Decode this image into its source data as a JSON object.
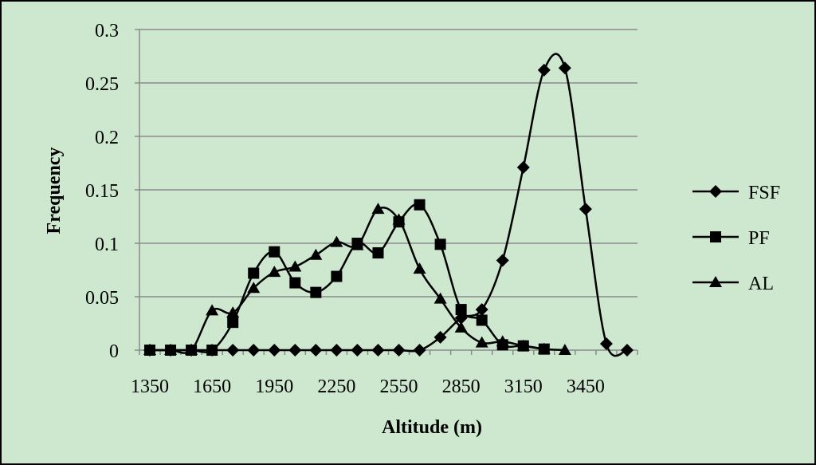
{
  "chart_data": {
    "type": "line",
    "xlabel": "Altitude (m)",
    "ylabel": "Frequency",
    "ylim": [
      0,
      0.3
    ],
    "y_ticks": [
      "0",
      "0.05",
      "0.1",
      "0.15",
      "0.2",
      "0.25",
      "0.3"
    ],
    "x_tick_labels": [
      "1350",
      "1650",
      "1950",
      "2250",
      "2550",
      "2850",
      "3150",
      "3450"
    ],
    "x": [
      1350,
      1450,
      1550,
      1650,
      1750,
      1850,
      1950,
      2050,
      2150,
      2250,
      2350,
      2450,
      2550,
      2650,
      2750,
      2850,
      2950,
      3050,
      3150,
      3250,
      3350,
      3450,
      3550,
      3650
    ],
    "grid": "horizontal",
    "legend_position": "right",
    "series": [
      {
        "name": "FSF",
        "marker": "diamond",
        "values": [
          0,
          0,
          0,
          0,
          0,
          0,
          0,
          0,
          0,
          0,
          0,
          0,
          0,
          0,
          0.012,
          0.03,
          0.038,
          0.084,
          0.171,
          0.262,
          0.264,
          0.132,
          0.006,
          0
        ]
      },
      {
        "name": "PF",
        "marker": "square",
        "values": [
          0,
          0,
          0,
          0,
          0.026,
          0.072,
          0.092,
          0.063,
          0.054,
          0.069,
          0.1,
          0.091,
          0.12,
          0.136,
          0.099,
          0.038,
          0.028,
          0.005,
          0.004,
          0.001,
          null,
          null,
          null,
          null
        ]
      },
      {
        "name": "AL",
        "marker": "triangle",
        "values": [
          0,
          0,
          0,
          0.037,
          0.035,
          0.058,
          0.073,
          0.078,
          0.089,
          0.101,
          0.098,
          0.132,
          0.122,
          0.076,
          0.048,
          0.021,
          0.007,
          0.008,
          0.004,
          0.001,
          0,
          null,
          null,
          null
        ]
      }
    ]
  }
}
